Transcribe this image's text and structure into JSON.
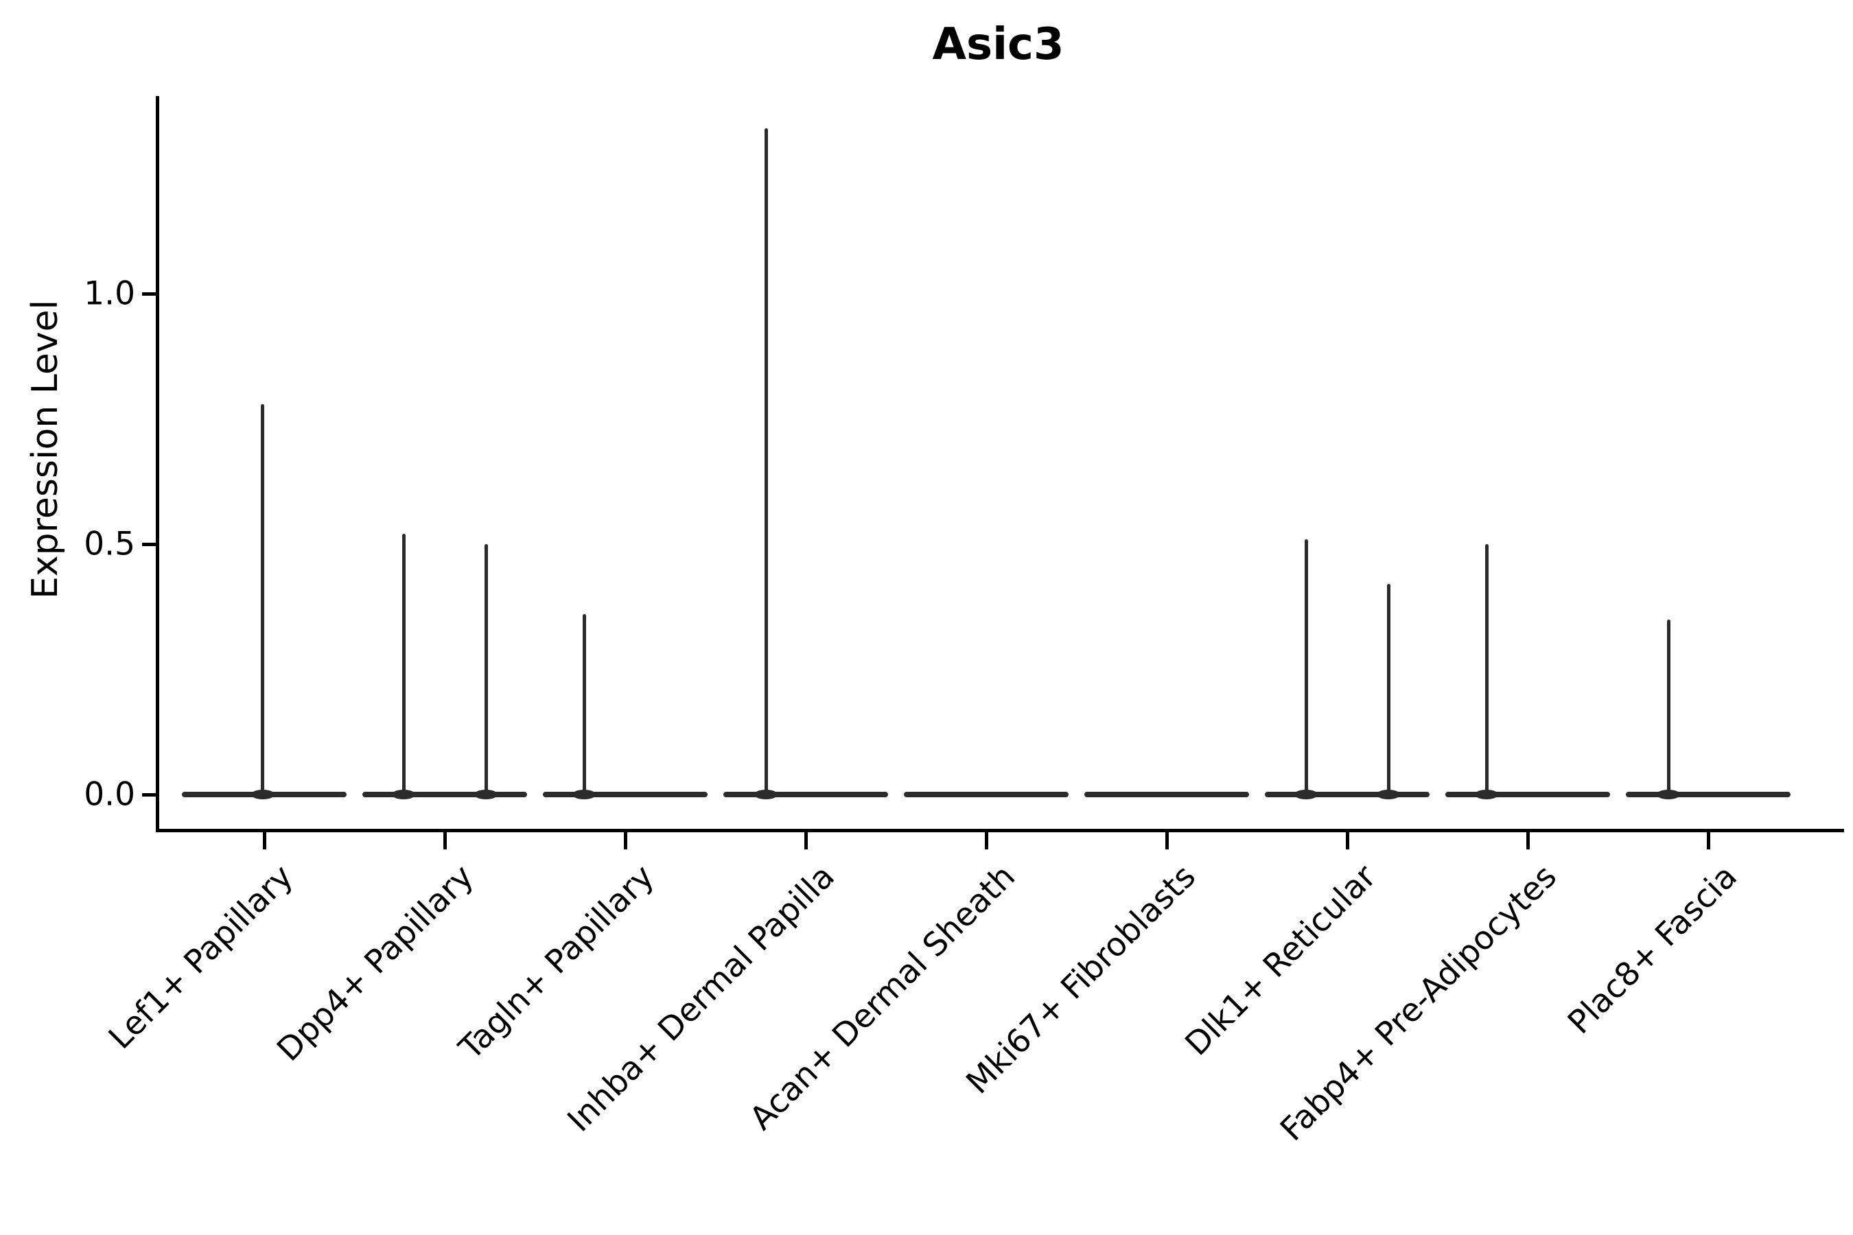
{
  "title": "Asic3",
  "y_axis": {
    "label": "Expression Level",
    "tick_labels": [
      "0.0",
      "0.5",
      "1.0"
    ]
  },
  "chart_data": {
    "type": "violin",
    "title": "Asic3",
    "xlabel": "",
    "ylabel": "Expression Level",
    "ylim": [
      -0.07,
      1.39
    ],
    "yticks": [
      0.0,
      0.5,
      1.0
    ],
    "grid": false,
    "legend": null,
    "violin_color": "#2b2b2b",
    "axis_color": "#000000",
    "background": "#ffffff",
    "categories": [
      "Lef1+ Papillary",
      "Dpp4+ Papillary",
      "Tagln+ Papillary",
      "Inhba+ Dermal Papilla",
      "Acan+ Dermal Sheath",
      "Mki67+ Fibroblasts",
      "Dlk1+ Reticular",
      "Fabp4+ Pre-Adipocytes",
      "Plac8+ Fascia"
    ],
    "violins": [
      {
        "category": "Lef1+ Papillary",
        "zero_mass": true,
        "spikes": [
          {
            "center_offset_frac": -0.01,
            "max": 0.78
          }
        ]
      },
      {
        "category": "Dpp4+ Papillary",
        "zero_mass": true,
        "spikes": [
          {
            "center_offset_frac": -0.25,
            "max": 0.52
          },
          {
            "center_offset_frac": 0.25,
            "max": 0.5
          }
        ]
      },
      {
        "category": "Tagln+ Papillary",
        "zero_mass": true,
        "spikes": [
          {
            "center_offset_frac": -0.25,
            "max": 0.36
          }
        ]
      },
      {
        "category": "Inhba+ Dermal Papilla",
        "zero_mass": true,
        "spikes": [
          {
            "center_offset_frac": -0.24,
            "max": 1.33
          }
        ]
      },
      {
        "category": "Acan+ Dermal Sheath",
        "zero_mass": true,
        "spikes": []
      },
      {
        "category": "Mki67+ Fibroblasts",
        "zero_mass": true,
        "spikes": []
      },
      {
        "category": "Dlk1+ Reticular",
        "zero_mass": true,
        "spikes": [
          {
            "center_offset_frac": -0.25,
            "max": 0.51
          },
          {
            "center_offset_frac": 0.25,
            "max": 0.42
          }
        ]
      },
      {
        "category": "Fabp4+ Pre-Adipocytes",
        "zero_mass": true,
        "spikes": [
          {
            "center_offset_frac": -0.25,
            "max": 0.5
          }
        ]
      },
      {
        "category": "Plac8+ Fascia",
        "zero_mass": true,
        "spikes": [
          {
            "center_offset_frac": -0.24,
            "max": 0.35
          }
        ]
      }
    ]
  }
}
